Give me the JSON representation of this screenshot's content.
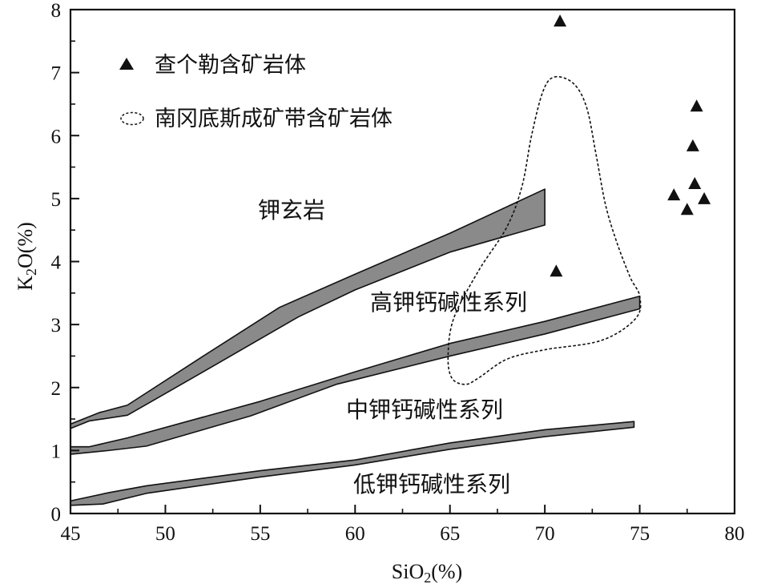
{
  "chart_data": {
    "type": "scatter",
    "xlabel": "SiO₂(%)",
    "ylabel": "K₂O(%)",
    "xlim": [
      45,
      80
    ],
    "ylim": [
      0,
      8
    ],
    "x_ticks": [
      45,
      50,
      55,
      60,
      65,
      70,
      75,
      80
    ],
    "y_ticks": [
      0,
      1,
      2,
      3,
      4,
      5,
      6,
      7,
      8
    ],
    "grid": false,
    "legend_position": "top-left",
    "legend": [
      {
        "marker": "triangle",
        "label": "查个勒含矿岩体"
      },
      {
        "marker": "dashed-ellipse",
        "label": "南冈底斯成矿带含矿岩体"
      }
    ],
    "series": [
      {
        "name": "查个勒含矿岩体",
        "marker": "triangle",
        "points": [
          {
            "x": 70.8,
            "y": 7.82
          },
          {
            "x": 70.6,
            "y": 3.85
          },
          {
            "x": 78.0,
            "y": 6.47
          },
          {
            "x": 77.8,
            "y": 5.84
          },
          {
            "x": 77.9,
            "y": 5.24
          },
          {
            "x": 76.8,
            "y": 5.06
          },
          {
            "x": 78.4,
            "y": 5.0
          },
          {
            "x": 77.5,
            "y": 4.83
          }
        ]
      }
    ],
    "envelope": {
      "name": "南冈底斯成矿带含矿岩体",
      "style": "dashed",
      "outline": [
        [
          70.5,
          6.93
        ],
        [
          71.5,
          6.83
        ],
        [
          72.2,
          6.45
        ],
        [
          72.7,
          5.7
        ],
        [
          73.2,
          4.9
        ],
        [
          73.8,
          4.3
        ],
        [
          74.5,
          3.75
        ],
        [
          75.0,
          3.45
        ],
        [
          74.8,
          3.1
        ],
        [
          73.0,
          2.75
        ],
        [
          70.0,
          2.6
        ],
        [
          68.0,
          2.45
        ],
        [
          66.5,
          2.15
        ],
        [
          65.8,
          2.05
        ],
        [
          65.1,
          2.15
        ],
        [
          64.9,
          2.5
        ],
        [
          65.2,
          3.1
        ],
        [
          66.5,
          3.85
        ],
        [
          68.0,
          4.55
        ],
        [
          68.8,
          5.2
        ],
        [
          69.3,
          6.0
        ],
        [
          69.9,
          6.7
        ]
      ]
    },
    "bands": [
      {
        "label": "钾玄岩",
        "upper": [
          [
            45,
            1.42
          ],
          [
            46.5,
            1.6
          ],
          [
            48,
            1.72
          ],
          [
            52,
            2.5
          ],
          [
            56,
            3.27
          ],
          [
            60,
            3.8
          ],
          [
            65,
            4.45
          ],
          [
            70,
            5.15
          ]
        ],
        "lower": [
          [
            45,
            1.35
          ],
          [
            46,
            1.47
          ],
          [
            48,
            1.56
          ],
          [
            52,
            2.25
          ],
          [
            57,
            3.12
          ],
          [
            60,
            3.55
          ],
          [
            65,
            4.15
          ],
          [
            70,
            4.58
          ]
        ]
      },
      {
        "label": "高钾钙碱性系列",
        "upper": [
          [
            45,
            1.06
          ],
          [
            46,
            1.06
          ],
          [
            48,
            1.2
          ],
          [
            55,
            1.78
          ],
          [
            60,
            2.25
          ],
          [
            65,
            2.7
          ],
          [
            70,
            3.05
          ],
          [
            75,
            3.45
          ]
        ],
        "lower": [
          [
            45,
            0.94
          ],
          [
            47,
            1.0
          ],
          [
            49,
            1.07
          ],
          [
            54.5,
            1.55
          ],
          [
            59,
            2.05
          ],
          [
            65,
            2.5
          ],
          [
            70,
            2.85
          ],
          [
            72.5,
            3.05
          ],
          [
            75,
            3.25
          ]
        ]
      },
      {
        "label": "中钾钙碱性系列",
        "upper": [
          [
            45,
            0.2
          ],
          [
            47,
            0.33
          ],
          [
            49,
            0.44
          ],
          [
            55,
            0.68
          ],
          [
            60,
            0.85
          ],
          [
            65,
            1.12
          ],
          [
            70,
            1.33
          ],
          [
            74.7,
            1.46
          ]
        ],
        "lower": [
          [
            45,
            0.13
          ],
          [
            46.7,
            0.15
          ],
          [
            49,
            0.32
          ],
          [
            55,
            0.58
          ],
          [
            60,
            0.77
          ],
          [
            65,
            1.02
          ],
          [
            70,
            1.22
          ],
          [
            74.7,
            1.37
          ]
        ]
      }
    ],
    "annotations": [
      "钾玄岩",
      "高钾钙碱性系列",
      "中钾钙碱性系列",
      "低钾钙碱性系列"
    ]
  }
}
